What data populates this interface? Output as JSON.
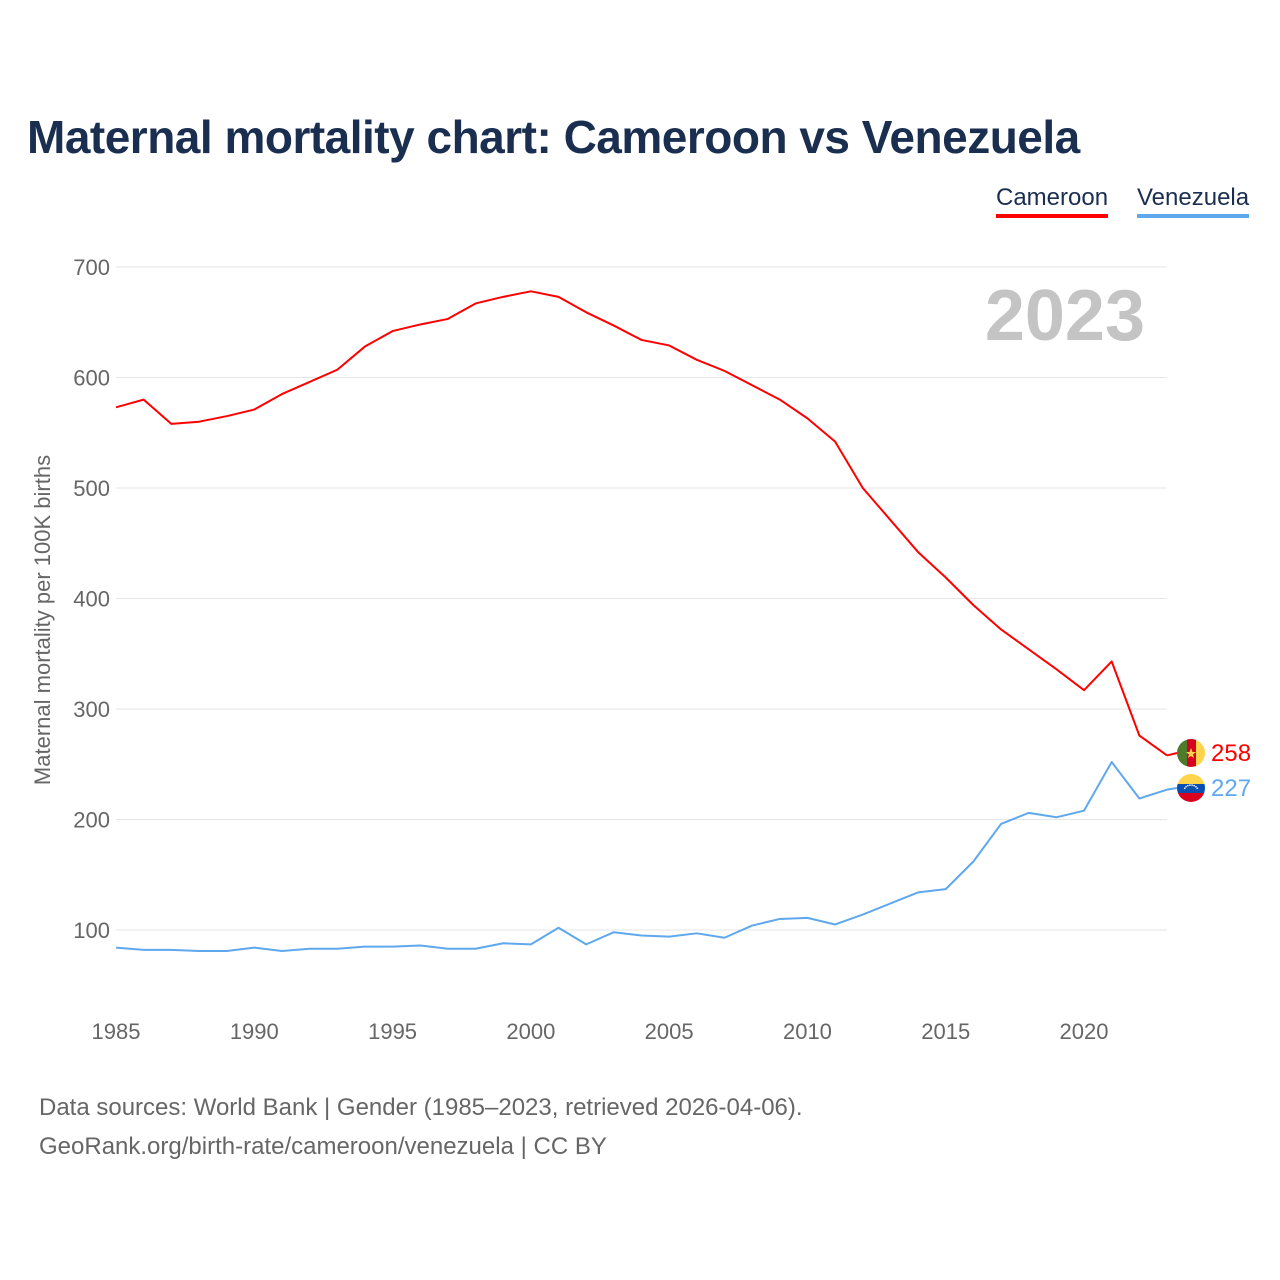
{
  "chart_data": {
    "type": "line",
    "title": "Maternal mortality chart: Cameroon vs Venezuela",
    "ylabel": "Maternal mortality per 100K births",
    "xlabel": "",
    "year_label": "2023",
    "xlim": [
      1985,
      2023
    ],
    "ylim": [
      30,
      700
    ],
    "yticks": [
      100,
      200,
      300,
      400,
      500,
      600,
      700
    ],
    "xticks": [
      1985,
      1990,
      1995,
      2000,
      2005,
      2010,
      2015,
      2020
    ],
    "grid": true,
    "legend_position": "top-right",
    "x": [
      1985,
      1986,
      1987,
      1988,
      1989,
      1990,
      1991,
      1992,
      1993,
      1994,
      1995,
      1996,
      1997,
      1998,
      1999,
      2000,
      2001,
      2002,
      2003,
      2004,
      2005,
      2006,
      2007,
      2008,
      2009,
      2010,
      2011,
      2012,
      2013,
      2014,
      2015,
      2016,
      2017,
      2018,
      2019,
      2020,
      2021,
      2022,
      2023
    ],
    "series": [
      {
        "name": "Cameroon",
        "color": "#ff0000",
        "end_label": "258",
        "values": [
          573,
          580,
          558,
          560,
          565,
          571,
          585,
          596,
          607,
          628,
          642,
          648,
          653,
          667,
          673,
          678,
          673,
          659,
          647,
          634,
          629,
          616,
          606,
          593,
          580,
          563,
          542,
          500,
          471,
          442,
          419,
          394,
          372,
          354,
          336,
          317,
          343,
          276,
          258
        ]
      },
      {
        "name": "Venezuela",
        "color": "#5fa8ee",
        "end_label": "227",
        "values": [
          84,
          82,
          82,
          81,
          81,
          84,
          81,
          83,
          83,
          85,
          85,
          86,
          83,
          83,
          88,
          87,
          102,
          87,
          98,
          95,
          94,
          97,
          93,
          104,
          110,
          111,
          105,
          114,
          124,
          134,
          137,
          162,
          196,
          206,
          202,
          208,
          252,
          219,
          227
        ]
      }
    ]
  },
  "footer": {
    "line1": "Data sources: World Bank | Gender (1985–2023, retrieved 2026-04-06).",
    "line2": "GeoRank.org/birth-rate/cameroon/venezuela | CC BY"
  }
}
